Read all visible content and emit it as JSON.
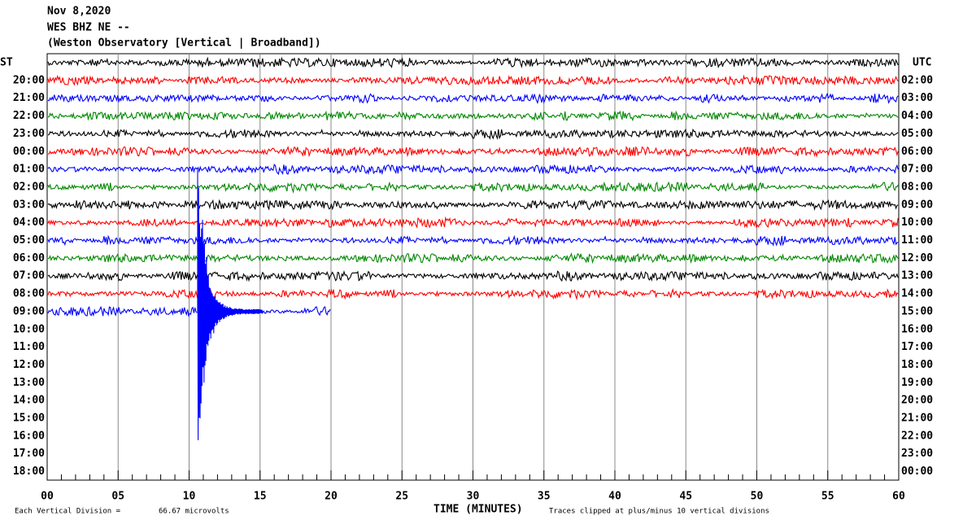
{
  "header": {
    "date": "Nov 8,2020",
    "station": "WES BHZ NE --",
    "description": "(Weston Observatory [Vertical | Broadband])"
  },
  "left_labels": [
    "ST",
    "20:00",
    "21:00",
    "22:00",
    "23:00",
    "00:00",
    "01:00",
    "02:00",
    "03:00",
    "04:00",
    "05:00",
    "06:00",
    "07:00",
    "08:00",
    "09:00",
    "10:00",
    "11:00",
    "12:00",
    "13:00",
    "14:00",
    "15:00",
    "16:00",
    "17:00",
    "18:00"
  ],
  "right_labels": [
    "UTC",
    "02:00",
    "03:00",
    "04:00",
    "05:00",
    "06:00",
    "07:00",
    "08:00",
    "09:00",
    "10:00",
    "11:00",
    "12:00",
    "13:00",
    "14:00",
    "15:00",
    "16:00",
    "17:00",
    "18:00",
    "19:00",
    "20:00",
    "21:00",
    "22:00",
    "23:00",
    "00:00"
  ],
  "x_axis": {
    "ticks": [
      "00",
      "05",
      "10",
      "15",
      "20",
      "25",
      "30",
      "35",
      "40",
      "45",
      "50",
      "55",
      "60"
    ],
    "title": "TIME (MINUTES)"
  },
  "footer": {
    "scale_label": "Each Vertical Division =",
    "scale_value": "66.67 microvolts",
    "clip_note": "Traces clipped at plus/minus 10 vertical divisions"
  }
}
